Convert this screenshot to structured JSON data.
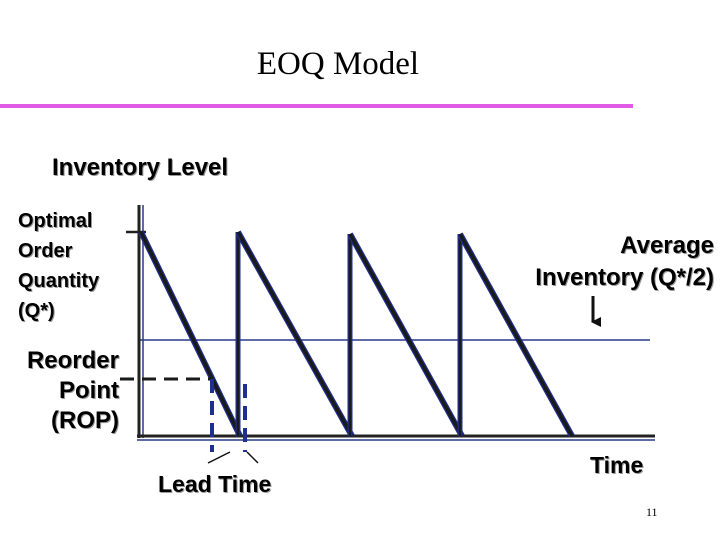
{
  "slide": {
    "title": "EOQ Model",
    "page_number": "11"
  },
  "diagram": {
    "y_axis_label": "Inventory Level",
    "x_axis_label": "Time",
    "optimal_order_quantity_label": [
      "Optimal",
      "Order",
      "Quantity",
      "(Q*)"
    ],
    "reorder_point_label": [
      "Reorder",
      "Point",
      "(ROP)"
    ],
    "average_inventory_label": [
      "Average",
      "Inventory (Q*/2)"
    ],
    "lead_time_label": "Lead Time",
    "colors": {
      "title_rule": "#e05ae6",
      "sawtooth": "#1a1a1a",
      "cycle_edge": "#1f2f8f",
      "average_line": "#2a3a8a"
    }
  }
}
